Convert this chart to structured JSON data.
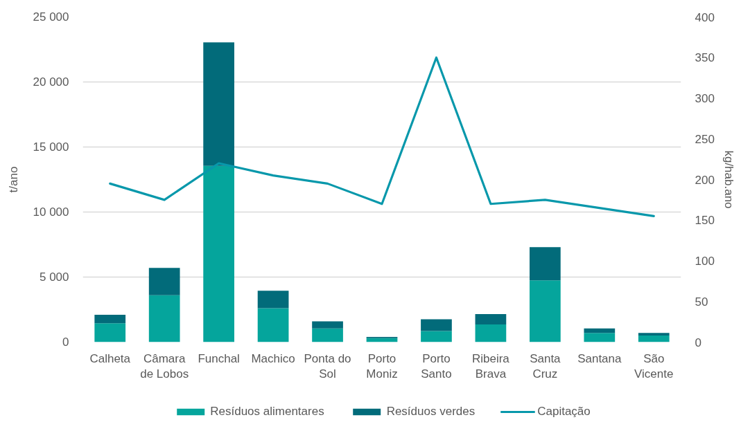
{
  "chart_data": {
    "type": "bar",
    "stacked": true,
    "ylabel": "t/ano",
    "y2label": "kg/hab.ano",
    "categories": [
      "Calheta",
      "Câmara de Lobos",
      "Funchal",
      "Machico",
      "Ponta do Sol",
      "Porto Moniz",
      "Porto Santo",
      "Ribeira Brava",
      "Santa Cruz",
      "Santana",
      "São Vicente"
    ],
    "series": [
      {
        "name": "Resíduos alimentares",
        "color": "#05a59c",
        "values": [
          1450,
          3600,
          13550,
          2600,
          1050,
          300,
          850,
          1350,
          4750,
          700,
          500
        ]
      },
      {
        "name": "Resíduos verdes",
        "color": "#026b7a",
        "values": [
          650,
          2100,
          9500,
          1350,
          550,
          100,
          900,
          800,
          2550,
          350,
          200
        ]
      },
      {
        "name": "Capitação",
        "type": "line",
        "axis": "y2",
        "color": "#0898ab",
        "values": [
          195,
          175,
          220,
          205,
          195,
          170,
          350,
          170,
          175,
          165,
          155
        ]
      }
    ],
    "ylim": [
      0,
      25000
    ],
    "yticks": [
      0,
      {
        "value": 5000,
        "label": "5 000"
      },
      {
        "value": 10000,
        "label": "10 000"
      },
      {
        "value": 15000,
        "label": "15 000"
      },
      {
        "value": 20000,
        "label": "20 000"
      },
      {
        "value": 25000,
        "label": "25 000"
      }
    ],
    "y2lim": [
      0,
      400
    ],
    "y2ticks": [
      0,
      50,
      100,
      150,
      200,
      250,
      300,
      350,
      400
    ],
    "grid": "y",
    "legend": "bottom"
  }
}
